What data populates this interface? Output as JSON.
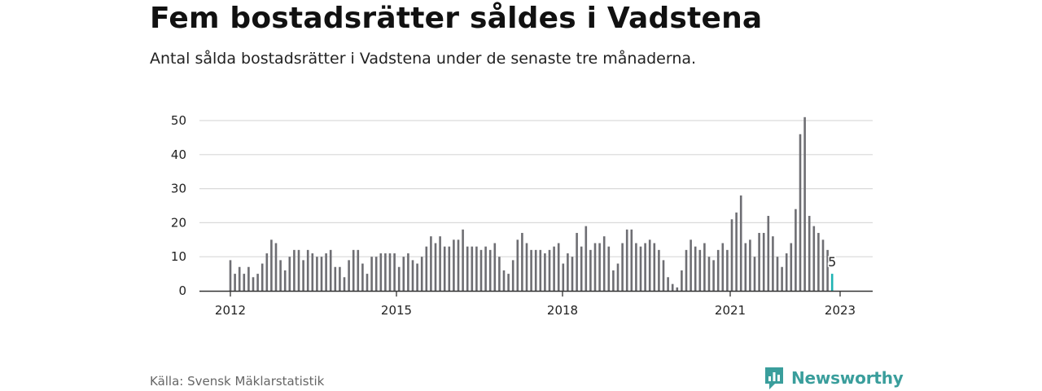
{
  "header": {
    "title": "Fem bostadsrätter såldes i Vadstena",
    "subtitle": "Antal sålda bostadsrätter i Vadstena under de senaste tre månaderna."
  },
  "footer": {
    "source": "Källa: Svensk Mäklarstatistik",
    "brand": "Newsworthy"
  },
  "colors": {
    "bar": "#6e6e73",
    "highlight": "#1fb3b3",
    "grid": "#d9d9d9",
    "axis": "#333333",
    "brand": "#3a9e9c"
  },
  "chart_data": {
    "type": "bar",
    "x_start": "2011-12",
    "x_end": "2023-01",
    "x_ticks": [
      "2012",
      "2015",
      "2018",
      "2021",
      "2023"
    ],
    "y_ticks": [
      "0",
      "10",
      "20",
      "30",
      "40",
      "50"
    ],
    "ylim": [
      0,
      52
    ],
    "grid": true,
    "values": [
      9,
      5,
      7,
      5,
      7,
      4,
      5,
      8,
      11,
      15,
      14,
      9,
      6,
      10,
      12,
      12,
      9,
      12,
      11,
      10,
      10,
      11,
      12,
      7,
      7,
      4,
      9,
      12,
      12,
      8,
      5,
      10,
      10,
      11,
      11,
      11,
      11,
      7,
      10,
      11,
      9,
      8,
      10,
      13,
      16,
      14,
      16,
      13,
      13,
      15,
      15,
      18,
      13,
      13,
      13,
      12,
      13,
      12,
      14,
      10,
      6,
      5,
      9,
      15,
      17,
      14,
      12,
      12,
      12,
      11,
      12,
      13,
      14,
      8,
      11,
      10,
      17,
      13,
      19,
      12,
      14,
      14,
      16,
      13,
      6,
      8,
      14,
      18,
      18,
      14,
      13,
      14,
      15,
      14,
      12,
      9,
      4,
      2,
      1,
      6,
      12,
      15,
      13,
      12,
      14,
      10,
      9,
      12,
      14,
      12,
      21,
      23,
      28,
      14,
      15,
      10,
      17,
      17,
      22,
      16,
      10,
      7,
      11,
      14,
      24,
      46,
      51,
      22,
      19,
      17,
      15,
      12,
      5
    ],
    "highlight_label": "5"
  }
}
